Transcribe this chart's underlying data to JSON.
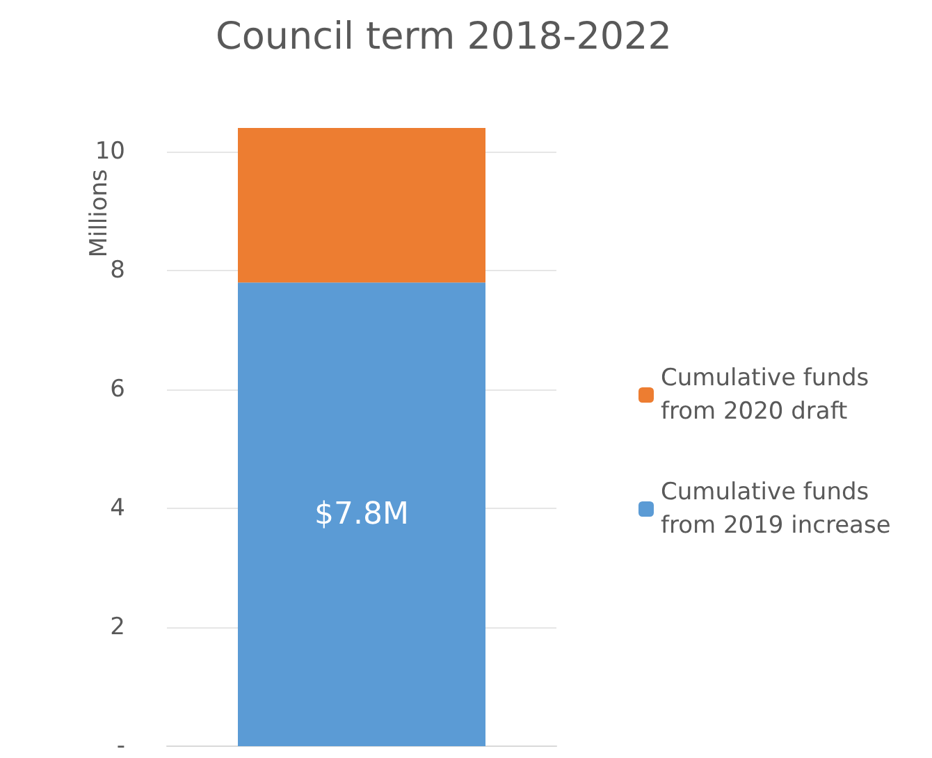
{
  "chart_data": {
    "type": "bar",
    "title": "Council term 2018-2022",
    "ylabel": "Millions",
    "categories": [
      null
    ],
    "series": [
      {
        "name": "Cumulative funds from 2019 increase",
        "color": "#5b9bd5",
        "values": [
          7.8
        ],
        "value_labels": [
          "$7.8M"
        ]
      },
      {
        "name": "Cumulative funds from 2020 draft",
        "color": "#ed7d31",
        "values": [
          2.6
        ]
      }
    ],
    "stacked": true,
    "ylim": [
      0,
      10.4
    ],
    "yticks": [
      {
        "value": 0,
        "label": "-"
      },
      2,
      4,
      6,
      8,
      10
    ],
    "grid": "y",
    "legend": "right"
  }
}
